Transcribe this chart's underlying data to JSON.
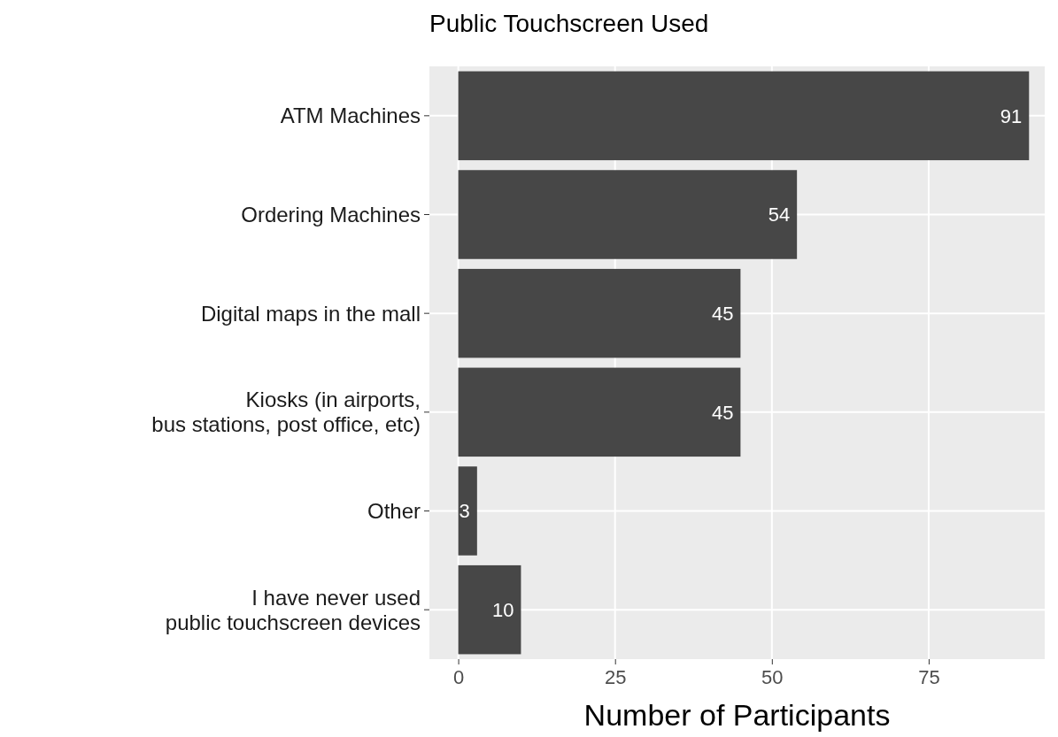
{
  "chart_data": {
    "type": "bar",
    "orientation": "horizontal",
    "title": "Public Touchscreen Used",
    "xlabel": "Number of Participants",
    "categories": [
      "ATM Machines",
      "Ordering Machines",
      "Digital maps in the mall",
      "Kiosks (in airports,\nbus stations, post office, etc)",
      "Other",
      "I have never used\npublic touchscreen devices"
    ],
    "values": [
      91,
      54,
      45,
      45,
      3,
      10
    ],
    "color": "#474747",
    "data_labels": true,
    "xlim": [
      -4.6,
      93.5
    ],
    "xticks": [
      0,
      25,
      50,
      75
    ],
    "grid": true
  }
}
